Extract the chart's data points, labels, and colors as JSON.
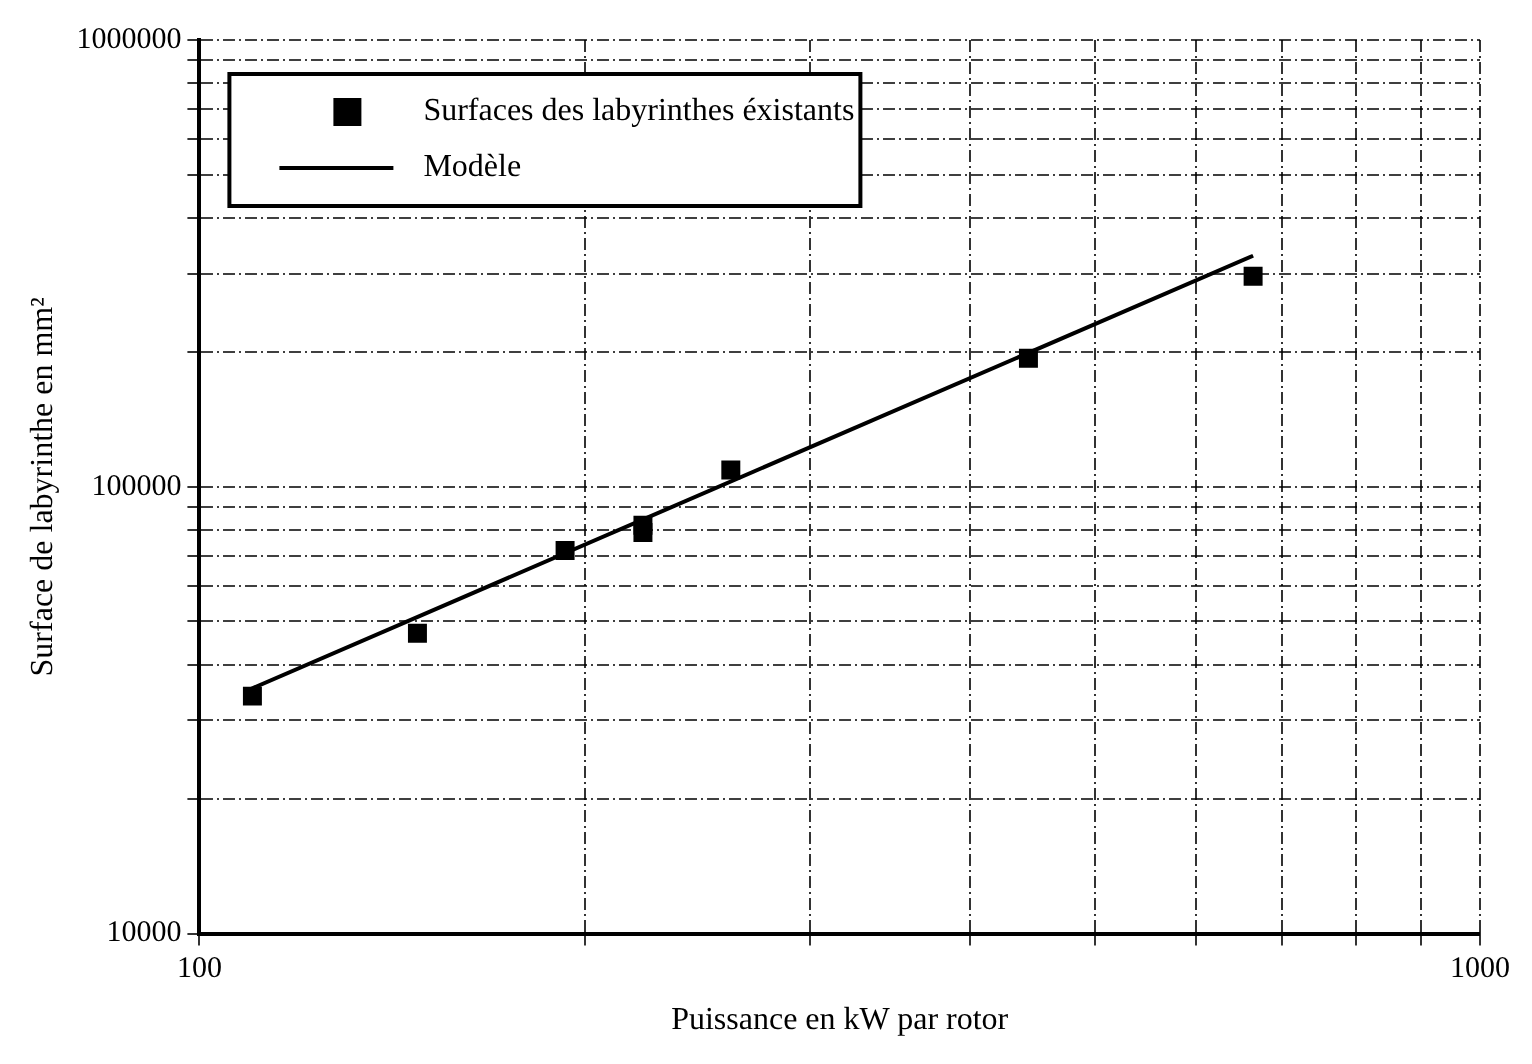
{
  "chart_data": {
    "type": "scatter",
    "xlabel": "Puissance en kW par rotor",
    "ylabel": "Surface de labyrinthe en mm²",
    "log": "xy",
    "grid": true,
    "legend": "top left",
    "xlim": [
      100,
      1000
    ],
    "ylim": [
      10000,
      1000000
    ],
    "xticks": [
      100,
      {
        "value": 200,
        "label": null
      },
      {
        "value": 300,
        "label": null
      },
      {
        "value": 400,
        "label": null
      },
      {
        "value": 500,
        "label": null
      },
      {
        "value": 600,
        "label": null
      },
      {
        "value": 700,
        "label": null
      },
      {
        "value": 800,
        "label": null
      },
      {
        "value": 900,
        "label": null
      },
      1000
    ],
    "yticks": [
      10000,
      {
        "value": 20000,
        "label": null
      },
      {
        "value": 30000,
        "label": null
      },
      {
        "value": 40000,
        "label": null
      },
      {
        "value": 50000,
        "label": null
      },
      {
        "value": 60000,
        "label": null
      },
      {
        "value": 70000,
        "label": null
      },
      {
        "value": 80000,
        "label": null
      },
      {
        "value": 90000,
        "label": null
      },
      100000,
      {
        "value": 200000,
        "label": null
      },
      {
        "value": 300000,
        "label": null
      },
      {
        "value": 400000,
        "label": null
      },
      {
        "value": 500000,
        "label": null
      },
      {
        "value": 600000,
        "label": null
      },
      {
        "value": 700000,
        "label": null
      },
      {
        "value": 800000,
        "label": null
      },
      {
        "value": 900000,
        "label": null
      },
      1000000
    ],
    "series": [
      {
        "name": "Surfaces des labyrinthes éxistants",
        "type": "scatter",
        "marker": "square",
        "color": "#000000",
        "x": [
          110,
          148,
          193,
          222,
          222,
          260,
          444,
          665
        ],
        "values": [
          34000,
          47000,
          72000,
          82000,
          79000,
          109000,
          194000,
          296000
        ]
      },
      {
        "name": "Modèle",
        "type": "line",
        "marker": "none",
        "line_style": "solid",
        "color": "#000000",
        "x": [
          109,
          665
        ],
        "values": [
          35000,
          329000
        ]
      }
    ]
  }
}
